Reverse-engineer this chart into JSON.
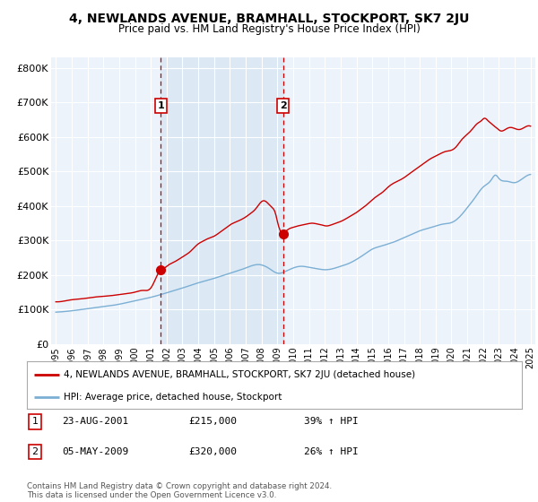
{
  "title": "4, NEWLANDS AVENUE, BRAMHALL, STOCKPORT, SK7 2JU",
  "subtitle": "Price paid vs. HM Land Registry's House Price Index (HPI)",
  "ylabel_ticks": [
    "£0",
    "£100K",
    "£200K",
    "£300K",
    "£400K",
    "£500K",
    "£600K",
    "£700K",
    "£800K"
  ],
  "ytick_values": [
    0,
    100000,
    200000,
    300000,
    400000,
    500000,
    600000,
    700000,
    800000
  ],
  "ylim": [
    0,
    830000
  ],
  "red_color": "#cc0000",
  "blue_color": "#7bafd4",
  "shade_color": "#dce9f5",
  "marker1_year": 2001.64,
  "marker1_price": 215000,
  "marker2_year": 2009.35,
  "marker2_price": 320000,
  "legend_label_red": "4, NEWLANDS AVENUE, BRAMHALL, STOCKPORT, SK7 2JU (detached house)",
  "legend_label_blue": "HPI: Average price, detached house, Stockport",
  "table_rows": [
    {
      "num": "1",
      "date": "23-AUG-2001",
      "price": "£215,000",
      "change": "39% ↑ HPI"
    },
    {
      "num": "2",
      "date": "05-MAY-2009",
      "price": "£320,000",
      "change": "26% ↑ HPI"
    }
  ],
  "footer": "Contains HM Land Registry data © Crown copyright and database right 2024.\nThis data is licensed under the Open Government Licence v3.0.",
  "xlim_left": 1994.7,
  "xlim_right": 2025.3,
  "background_plot": "#edf3fb",
  "grid_color": "#ffffff"
}
